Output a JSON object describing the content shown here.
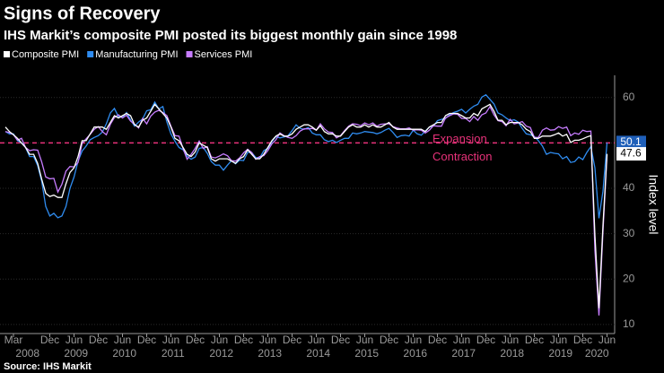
{
  "chart_data": {
    "type": "line",
    "title": "Signs of Recovery",
    "subtitle": "IHS Markit’s composite PMI posted its biggest monthly gain since 1998",
    "source": "Source: IHS Markit",
    "y_axis_label": "Index level",
    "annotations": [
      "Expansion",
      "Contraction"
    ],
    "reference_line": 50,
    "reference_color": "#e8327a",
    "x": [
      "2008-01",
      "2008-02",
      "2008-03",
      "2008-04",
      "2008-05",
      "2008-06",
      "2008-07",
      "2008-08",
      "2008-09",
      "2008-10",
      "2008-11",
      "2008-12",
      "2009-01",
      "2009-02",
      "2009-03",
      "2009-04",
      "2009-05",
      "2009-06",
      "2009-07",
      "2009-08",
      "2009-09",
      "2009-10",
      "2009-11",
      "2009-12",
      "2010-01",
      "2010-02",
      "2010-03",
      "2010-04",
      "2010-05",
      "2010-06",
      "2010-07",
      "2010-08",
      "2010-09",
      "2010-10",
      "2010-11",
      "2010-12",
      "2011-01",
      "2011-02",
      "2011-03",
      "2011-04",
      "2011-05",
      "2011-06",
      "2011-07",
      "2011-08",
      "2011-09",
      "2011-10",
      "2011-11",
      "2011-12",
      "2012-01",
      "2012-02",
      "2012-03",
      "2012-04",
      "2012-05",
      "2012-06",
      "2012-07",
      "2012-08",
      "2012-09",
      "2012-10",
      "2012-11",
      "2012-12",
      "2013-01",
      "2013-02",
      "2013-03",
      "2013-04",
      "2013-05",
      "2013-06",
      "2013-07",
      "2013-08",
      "2013-09",
      "2013-10",
      "2013-11",
      "2013-12",
      "2014-01",
      "2014-02",
      "2014-03",
      "2014-04",
      "2014-05",
      "2014-06",
      "2014-07",
      "2014-08",
      "2014-09",
      "2014-10",
      "2014-11",
      "2014-12",
      "2015-01",
      "2015-02",
      "2015-03",
      "2015-04",
      "2015-05",
      "2015-06",
      "2015-07",
      "2015-08",
      "2015-09",
      "2015-10",
      "2015-11",
      "2015-12",
      "2016-01",
      "2016-02",
      "2016-03",
      "2016-04",
      "2016-05",
      "2016-06",
      "2016-07",
      "2016-08",
      "2016-09",
      "2016-10",
      "2016-11",
      "2016-12",
      "2017-01",
      "2017-02",
      "2017-03",
      "2017-04",
      "2017-05",
      "2017-06",
      "2017-07",
      "2017-08",
      "2017-09",
      "2017-10",
      "2017-11",
      "2017-12",
      "2018-01",
      "2018-02",
      "2018-03",
      "2018-04",
      "2018-05",
      "2018-06",
      "2018-07",
      "2018-08",
      "2018-09",
      "2018-10",
      "2018-11",
      "2018-12",
      "2019-01",
      "2019-02",
      "2019-03",
      "2019-04",
      "2019-05",
      "2019-06",
      "2019-07",
      "2019-08",
      "2019-09",
      "2019-10",
      "2019-11",
      "2019-12",
      "2020-01",
      "2020-02",
      "2020-03",
      "2020-04",
      "2020-05",
      "2020-06"
    ],
    "xticks": [
      {
        "value": "2008-03",
        "label": "Mar"
      },
      {
        "value": "2008-12",
        "label": "Dec"
      },
      {
        "value": "2009-06",
        "label": "Jun"
      },
      {
        "value": "2009-12",
        "label": "Dec"
      },
      {
        "value": "2010-06",
        "label": "Jun"
      },
      {
        "value": "2010-12",
        "label": "Dec"
      },
      {
        "value": "2011-06",
        "label": "Jun"
      },
      {
        "value": "2011-12",
        "label": "Dec"
      },
      {
        "value": "2012-06",
        "label": "Jun"
      },
      {
        "value": "2012-12",
        "label": "Dec"
      },
      {
        "value": "2013-06",
        "label": "Jun"
      },
      {
        "value": "2013-12",
        "label": "Dec"
      },
      {
        "value": "2014-06",
        "label": "Jun"
      },
      {
        "value": "2014-12",
        "label": "Dec"
      },
      {
        "value": "2015-06",
        "label": "Jun"
      },
      {
        "value": "2015-12",
        "label": "Dec"
      },
      {
        "value": "2016-06",
        "label": "Jun"
      },
      {
        "value": "2016-12",
        "label": "Dec"
      },
      {
        "value": "2017-06",
        "label": "Jun"
      },
      {
        "value": "2017-12",
        "label": "Dec"
      },
      {
        "value": "2018-06",
        "label": "Jun"
      },
      {
        "value": "2018-12",
        "label": "Dec"
      },
      {
        "value": "2019-06",
        "label": "Jun"
      },
      {
        "value": "2019-12",
        "label": "Dec"
      },
      {
        "value": "2020-06",
        "label": "Jun"
      }
    ],
    "year_labels": [
      "2008",
      "2009",
      "2010",
      "2011",
      "2012",
      "2013",
      "2014",
      "2015",
      "2016",
      "2017",
      "2018",
      "2019",
      "2020"
    ],
    "ylim": [
      8.4,
      64.5
    ],
    "yticks": [
      10,
      20,
      30,
      40,
      50,
      60
    ],
    "series": [
      {
        "name": "Composite PMI",
        "color": "#ffffff",
        "values": [
          53.5,
          52.5,
          51.8,
          51.0,
          50.0,
          49.0,
          47.5,
          47.5,
          45.5,
          42.0,
          38.9,
          38.2,
          38.5,
          38.0,
          38.0,
          41.0,
          43.5,
          44.5,
          47.0,
          50.5,
          50.5,
          52.0,
          53.5,
          53.5,
          53.5,
          53.0,
          54.5,
          56.0,
          55.5,
          56.0,
          56.5,
          56.0,
          54.0,
          53.5,
          55.0,
          55.5,
          57.0,
          58.5,
          57.5,
          56.5,
          55.5,
          53.5,
          51.0,
          50.5,
          49.0,
          47.5,
          47.0,
          48.0,
          50.0,
          49.5,
          49.0,
          46.5,
          46.0,
          46.5,
          46.5,
          46.5,
          46.0,
          45.5,
          46.5,
          47.0,
          48.5,
          47.5,
          46.5,
          46.5,
          47.5,
          49.0,
          50.5,
          51.5,
          52.0,
          51.5,
          51.5,
          52.0,
          53.0,
          53.5,
          54.0,
          54.0,
          53.5,
          52.8,
          53.8,
          52.5,
          52.0,
          52.0,
          51.5,
          51.5,
          52.5,
          53.5,
          54.0,
          53.5,
          53.5,
          54.0,
          53.5,
          54.0,
          53.5,
          53.5,
          54.0,
          54.5,
          53.5,
          53.0,
          53.0,
          53.0,
          53.0,
          53.0,
          53.0,
          53.0,
          52.5,
          53.5,
          54.0,
          54.5,
          54.5,
          56.0,
          56.5,
          56.5,
          56.5,
          56.0,
          55.5,
          55.5,
          56.5,
          56.0,
          57.5,
          58.0,
          58.5,
          57.0,
          55.0,
          55.0,
          54.0,
          54.5,
          54.5,
          54.5,
          54.0,
          53.0,
          52.5,
          51.0,
          51.0,
          51.5,
          51.5,
          51.5,
          51.8,
          52.2,
          51.5,
          51.9,
          50.1,
          50.6,
          50.6,
          50.9,
          51.3,
          51.6,
          29.7,
          13.6,
          31.9,
          47.6
        ]
      },
      {
        "name": "Manufacturing PMI",
        "color": "#2f8cf0",
        "label_fill": "#1f5fb8",
        "values": [
          52.5,
          52.0,
          52.0,
          50.5,
          50.0,
          49.0,
          47.0,
          47.0,
          45.0,
          41.5,
          36.0,
          33.9,
          34.5,
          33.5,
          33.9,
          36.0,
          40.0,
          42.5,
          46.0,
          48.2,
          49.3,
          50.7,
          51.2,
          51.6,
          52.4,
          54.2,
          56.6,
          57.6,
          55.8,
          55.6,
          56.7,
          55.1,
          53.7,
          54.6,
          55.3,
          57.1,
          57.3,
          59.0,
          57.5,
          58.0,
          54.6,
          52.0,
          50.4,
          49.0,
          48.5,
          47.1,
          46.4,
          46.9,
          48.8,
          49.0,
          47.7,
          45.9,
          45.1,
          45.1,
          44.0,
          45.1,
          46.1,
          45.4,
          46.2,
          46.1,
          47.9,
          47.9,
          46.8,
          46.7,
          48.3,
          48.8,
          50.3,
          51.4,
          51.1,
          51.3,
          51.6,
          52.7,
          54.0,
          53.2,
          53.0,
          53.4,
          52.2,
          51.8,
          51.8,
          50.7,
          50.3,
          50.6,
          50.1,
          50.6,
          51.0,
          51.0,
          52.2,
          52.0,
          52.2,
          52.5,
          52.4,
          52.3,
          52.0,
          52.3,
          52.8,
          53.2,
          52.3,
          51.2,
          51.6,
          51.7,
          51.5,
          52.8,
          52.0,
          51.7,
          52.6,
          53.5,
          53.7,
          54.9,
          55.2,
          55.4,
          56.2,
          56.7,
          57.0,
          57.4,
          56.6,
          57.4,
          58.1,
          58.5,
          60.1,
          60.6,
          59.6,
          58.6,
          56.6,
          56.2,
          55.5,
          54.9,
          55.1,
          54.6,
          53.2,
          52.0,
          51.8,
          51.4,
          50.5,
          49.3,
          47.5,
          47.9,
          47.7,
          47.6,
          46.5,
          47.0,
          45.7,
          45.9,
          46.9,
          46.3,
          47.9,
          49.2,
          44.5,
          33.4,
          39.4,
          50.1
        ]
      },
      {
        "name": "Services PMI",
        "color": "#c77dff",
        "values": [
          52.5,
          52.3,
          51.8,
          50.6,
          51.0,
          49.0,
          48.3,
          48.5,
          48.4,
          45.8,
          42.5,
          42.1,
          42.2,
          39.2,
          40.9,
          43.8,
          44.8,
          44.7,
          45.7,
          49.9,
          50.9,
          51.9,
          53.0,
          53.6,
          52.5,
          51.8,
          54.1,
          55.6,
          56.2,
          55.5,
          56.1,
          54.8,
          54.1,
          53.3,
          55.4,
          54.2,
          55.9,
          56.8,
          57.2,
          56.7,
          56.0,
          53.7,
          51.6,
          51.5,
          48.8,
          46.4,
          47.5,
          48.8,
          50.4,
          48.8,
          49.2,
          46.9,
          46.7,
          47.1,
          47.6,
          47.2,
          46.1,
          46.0,
          46.7,
          47.8,
          48.6,
          47.9,
          46.4,
          47.0,
          47.2,
          48.3,
          49.8,
          50.7,
          52.2,
          51.6,
          51.2,
          51.0,
          51.6,
          52.6,
          53.1,
          53.1,
          53.2,
          52.8,
          54.2,
          53.1,
          52.4,
          52.3,
          51.1,
          51.6,
          52.7,
          53.7,
          54.2,
          54.1,
          53.8,
          54.4,
          54.0,
          54.4,
          53.7,
          54.1,
          54.2,
          54.2,
          53.6,
          53.3,
          53.1,
          53.1,
          53.3,
          52.8,
          52.9,
          52.8,
          52.2,
          52.8,
          53.8,
          53.7,
          53.7,
          55.5,
          56.0,
          56.4,
          56.3,
          55.4,
          55.4,
          54.7,
          55.8,
          55.0,
          56.2,
          56.6,
          58.0,
          56.2,
          54.9,
          54.7,
          53.8,
          55.2,
          54.2,
          54.4,
          54.7,
          53.7,
          53.4,
          51.2,
          51.2,
          52.8,
          53.3,
          52.8,
          52.9,
          53.6,
          53.2,
          53.5,
          51.6,
          52.2,
          51.9,
          52.8,
          52.5,
          52.6,
          26.4,
          12.0,
          30.5,
          47.3
        ]
      }
    ]
  }
}
